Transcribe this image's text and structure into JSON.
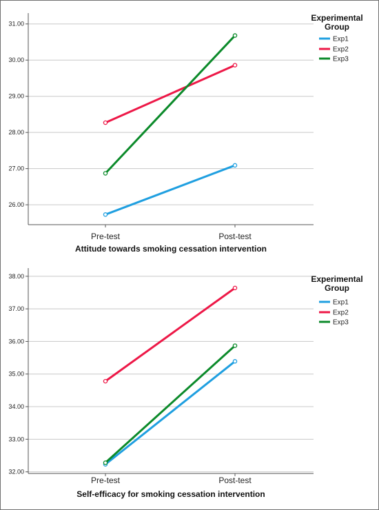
{
  "chart_data": [
    {
      "type": "line",
      "title": "Attitude towards smoking cessation intervention",
      "xlabel": "",
      "ylabel": "",
      "categories": [
        "Pre-test",
        "Post-test"
      ],
      "yticks": [
        "26.00",
        "27.00",
        "28.00",
        "29.00",
        "30.00",
        "31.00"
      ],
      "ylim": [
        25.45,
        31.3
      ],
      "grid": true,
      "legend_title": "Experimental Group",
      "legend_position": "right",
      "series": [
        {
          "name": "Exp1",
          "color": "#1f9fe0",
          "values": [
            25.73,
            27.09
          ]
        },
        {
          "name": "Exp2",
          "color": "#ed1847",
          "values": [
            28.27,
            29.86
          ]
        },
        {
          "name": "Exp3",
          "color": "#0b8a2a",
          "values": [
            26.87,
            30.68
          ]
        }
      ]
    },
    {
      "type": "line",
      "title": "Self-efficacy for smoking cessation intervention",
      "xlabel": "",
      "ylabel": "",
      "categories": [
        "Pre-test",
        "Post-test"
      ],
      "yticks": [
        "32.00",
        "33.00",
        "34.00",
        "35.00",
        "36.00",
        "37.00",
        "38.00"
      ],
      "ylim": [
        31.95,
        38.25
      ],
      "grid": true,
      "legend_title": "Experimental Group",
      "legend_position": "right",
      "series": [
        {
          "name": "Exp1",
          "color": "#1f9fe0",
          "values": [
            32.23,
            35.39
          ]
        },
        {
          "name": "Exp2",
          "color": "#ed1847",
          "values": [
            34.78,
            37.64
          ]
        },
        {
          "name": "Exp3",
          "color": "#0b8a2a",
          "values": [
            32.28,
            35.87
          ]
        }
      ]
    }
  ]
}
